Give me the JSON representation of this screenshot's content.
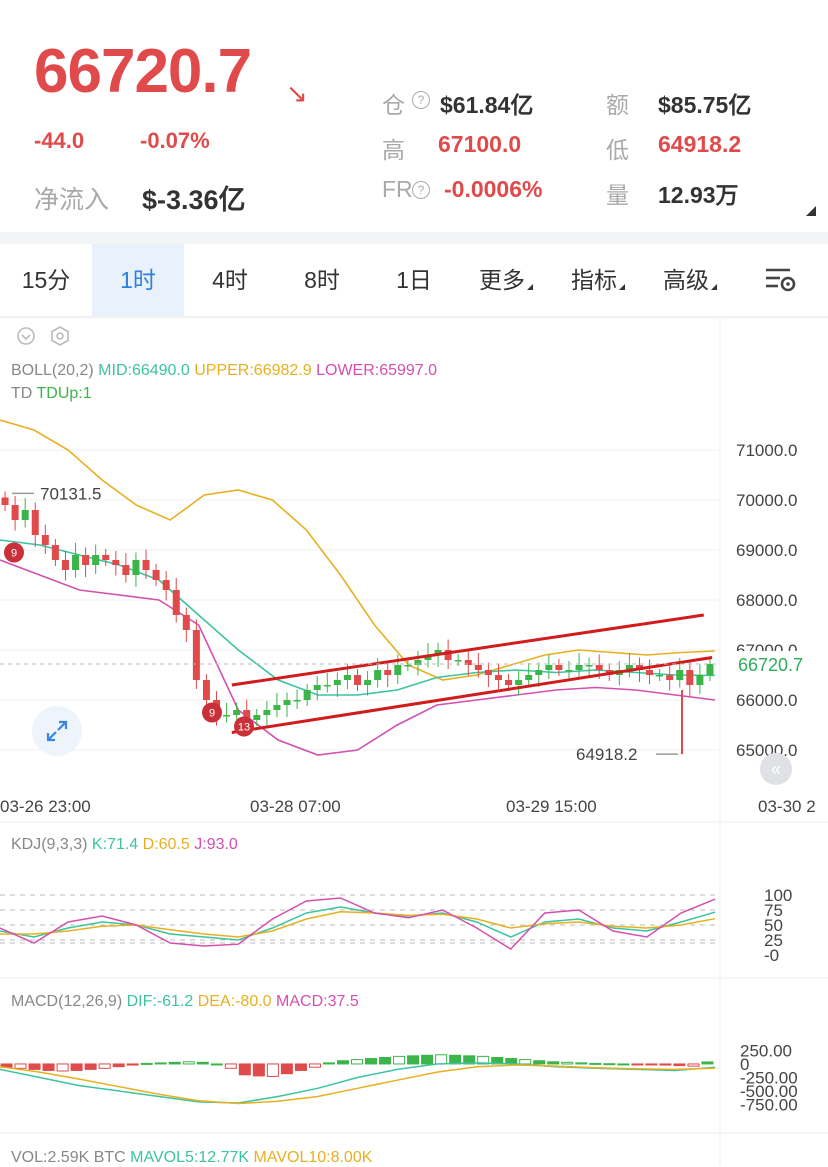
{
  "header": {
    "price": "66720.7",
    "change": "-44.0",
    "change_pct": "-0.07%",
    "net_inflow_label": "净流入",
    "net_inflow_value": "$-3.36亿",
    "stats": [
      {
        "label": "仓",
        "value": "$61.84亿",
        "has_q": true,
        "color": "dark"
      },
      {
        "label": "额",
        "value": "$85.75亿",
        "has_q": false,
        "color": "dark"
      },
      {
        "label": "高",
        "value": "67100.0",
        "has_q": false,
        "color": "red"
      },
      {
        "label": "低",
        "value": "64918.2",
        "has_q": false,
        "color": "red"
      },
      {
        "label": "FR",
        "value": "-0.0006%",
        "has_q": true,
        "color": "red"
      },
      {
        "label": "量",
        "value": "12.93万",
        "has_q": false,
        "color": "dark"
      }
    ]
  },
  "tabs": [
    {
      "label": "15分",
      "active": false,
      "dropdown": false
    },
    {
      "label": "1时",
      "active": true,
      "dropdown": false
    },
    {
      "label": "4时",
      "active": false,
      "dropdown": false
    },
    {
      "label": "8时",
      "active": false,
      "dropdown": false
    },
    {
      "label": "1日",
      "active": false,
      "dropdown": false
    },
    {
      "label": "更多",
      "active": false,
      "dropdown": true
    },
    {
      "label": "指标",
      "active": false,
      "dropdown": true
    },
    {
      "label": "高级",
      "active": false,
      "dropdown": true
    }
  ],
  "icons": {
    "settings": "chart-settings-icon",
    "expand": "expand-icon",
    "back": "double-chevron-left-icon",
    "eye": "eye-icon",
    "gear": "gear-icon"
  },
  "colors": {
    "up": "#3bb54a",
    "down": "#e04a4a",
    "mid": "#3cc3a0",
    "upper": "#e8b020",
    "lower": "#d44fb0",
    "trendline": "#d01c1c",
    "accent": "#2f7fe0"
  },
  "indicators": {
    "boll": {
      "name": "BOLL(20,2)",
      "mid": "MID:66490.0",
      "upper": "UPPER:66982.9",
      "lower": "LOWER:65997.0"
    },
    "td": {
      "name": "TD",
      "value": "TDUp:1"
    },
    "kdj": {
      "name": "KDJ(9,3,3)",
      "k": "K:71.4",
      "d": "D:60.5",
      "j": "J:93.0"
    },
    "macd": {
      "name": "MACD(12,26,9)",
      "dif": "DIF:-61.2",
      "dea": "DEA:-80.0",
      "macd": "MACD:37.5"
    },
    "vol": {
      "name": "VOL:2.59K BTC",
      "mavol5": "MAVOL5:12.77K",
      "mavol10": "MAVOL10:8.00K"
    }
  },
  "chart_data": [
    {
      "type": "candlestick",
      "title": "",
      "y_ticks": [
        "71000.0",
        "70000.0",
        "69000.0",
        "68000.0",
        "67000.0",
        "66000.0",
        "65000.0"
      ],
      "ylim": [
        64400,
        72000
      ],
      "x_ticks": [
        "03-26 23:00",
        "03-28 07:00",
        "03-29 15:00",
        "03-30 2"
      ],
      "current_price_label": "66720.7",
      "high_marker": "70131.5",
      "low_marker": "64918.2",
      "td_markers": [
        "9",
        "9",
        "13"
      ],
      "trend_channel": {
        "upper": [
          [
            0.28,
            66300
          ],
          [
            0.85,
            67700
          ]
        ],
        "lower": [
          [
            0.28,
            65350
          ],
          [
            0.86,
            66850
          ]
        ]
      },
      "close_series": [
        69900,
        69600,
        69800,
        69300,
        69100,
        68800,
        68600,
        68900,
        68700,
        68900,
        68800,
        68700,
        68500,
        68800,
        68600,
        68400,
        68200,
        67700,
        67400,
        66400,
        66000,
        65700,
        65700,
        65800,
        65600,
        65700,
        65800,
        65900,
        66000,
        66000,
        66200,
        66300,
        66300,
        66400,
        66500,
        66300,
        66400,
        66600,
        66500,
        66700,
        66700,
        66800,
        66900,
        67000,
        66800,
        66800,
        66700,
        66600,
        66500,
        66400,
        66300,
        66400,
        66500,
        66600,
        66700,
        66600,
        66600,
        66700,
        66700,
        66600,
        66500,
        66600,
        66700,
        66600,
        66500,
        66500,
        66400,
        66600,
        66300,
        66500,
        66720
      ],
      "boll_upper": [
        71600,
        71400,
        71000,
        70400,
        69900,
        69600,
        70100,
        70200,
        70000,
        69400,
        68500,
        67500,
        66700,
        66400,
        66500,
        66700,
        66900,
        67000,
        66950,
        66900,
        66950,
        66980
      ],
      "boll_mid": [
        69200,
        69100,
        68900,
        68700,
        68400,
        67700,
        67000,
        66400,
        66100,
        66100,
        66200,
        66450,
        66550,
        66600,
        66550,
        66600,
        66550,
        66500,
        66490
      ],
      "boll_lower": [
        68800,
        68500,
        68200,
        68100,
        68000,
        67500,
        65800,
        65200,
        64900,
        65000,
        65500,
        65900,
        66000,
        66100,
        66200,
        66250,
        66200,
        66100,
        66000
      ]
    },
    {
      "type": "line",
      "title": "KDJ(9,3,3)",
      "y_ticks": [
        "100",
        "75",
        "50",
        "25",
        "-0"
      ],
      "ylim": [
        0,
        100
      ],
      "series": [
        {
          "name": "K",
          "values": [
            40,
            30,
            45,
            55,
            50,
            35,
            30,
            25,
            45,
            70,
            80,
            70,
            65,
            70,
            55,
            30,
            55,
            60,
            45,
            40,
            55,
            71.4
          ]
        },
        {
          "name": "D",
          "values": [
            35,
            35,
            40,
            48,
            50,
            42,
            35,
            30,
            40,
            60,
            72,
            70,
            66,
            68,
            60,
            45,
            52,
            55,
            48,
            45,
            50,
            60.5
          ]
        },
        {
          "name": "J",
          "values": [
            45,
            20,
            55,
            65,
            50,
            20,
            15,
            18,
            60,
            90,
            95,
            70,
            62,
            75,
            45,
            10,
            70,
            75,
            40,
            30,
            70,
            93
          ]
        }
      ]
    },
    {
      "type": "bar+line",
      "title": "MACD(12,26,9)",
      "y_ticks": [
        "250.00",
        "0",
        "-250.00",
        "-500.00",
        "-750.00"
      ],
      "ylim": [
        -850,
        350
      ],
      "histogram": [
        -60,
        -80,
        -100,
        -120,
        -130,
        -120,
        -100,
        -80,
        -50,
        -20,
        10,
        20,
        30,
        40,
        30,
        0,
        -80,
        -200,
        -220,
        -230,
        -180,
        -120,
        -60,
        20,
        60,
        80,
        100,
        120,
        140,
        150,
        160,
        170,
        160,
        150,
        140,
        120,
        100,
        80,
        60,
        40,
        30,
        20,
        10,
        5,
        0,
        -5,
        -10,
        -20,
        -30,
        -40,
        37.5
      ],
      "series": [
        {
          "name": "DIF",
          "values": [
            -100,
            -250,
            -400,
            -500,
            -600,
            -700,
            -720,
            -600,
            -450,
            -250,
            -100,
            0,
            20,
            0,
            -50,
            -80,
            -100,
            -120,
            -61.2
          ]
        },
        {
          "name": "DEA",
          "values": [
            -50,
            -150,
            -280,
            -420,
            -560,
            -680,
            -730,
            -690,
            -600,
            -450,
            -300,
            -150,
            -50,
            -20,
            -40,
            -70,
            -90,
            -100,
            -80
          ]
        }
      ]
    },
    {
      "type": "bar",
      "title": "VOL:2.59K BTC",
      "series": [
        {
          "name": "MAVOL5",
          "values": [
            12770
          ]
        },
        {
          "name": "MAVOL10",
          "values": [
            8000
          ]
        }
      ]
    }
  ]
}
